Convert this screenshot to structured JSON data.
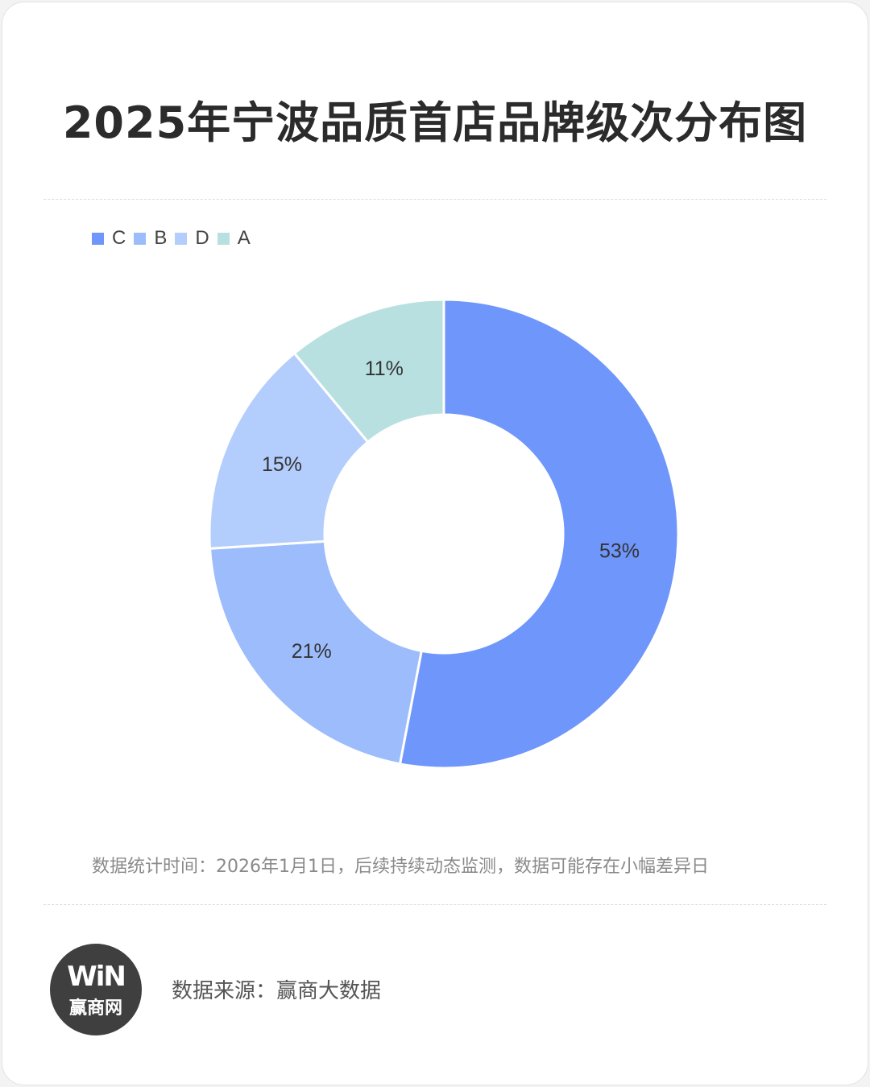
{
  "chart_data": {
    "type": "pie",
    "variant": "donut",
    "title": "2025年宁波品质首店品牌级次分布图",
    "categories": [
      "C",
      "B",
      "D",
      "A"
    ],
    "values": [
      53,
      21,
      15,
      11
    ],
    "labels": [
      "53%",
      "21%",
      "15%",
      "11%"
    ],
    "colors": [
      "#6f96fb",
      "#9dbcfc",
      "#b3cdfc",
      "#b9e0e0"
    ],
    "legend_position": "top-left",
    "start_angle": "top, clockwise"
  },
  "note": "数据统计时间：2026年1月1日，后续持续动态监测，数据可能存在小幅差异日",
  "source": "数据来源：赢商大数据",
  "logo": {
    "text": "WiN",
    "name": "赢商网"
  }
}
